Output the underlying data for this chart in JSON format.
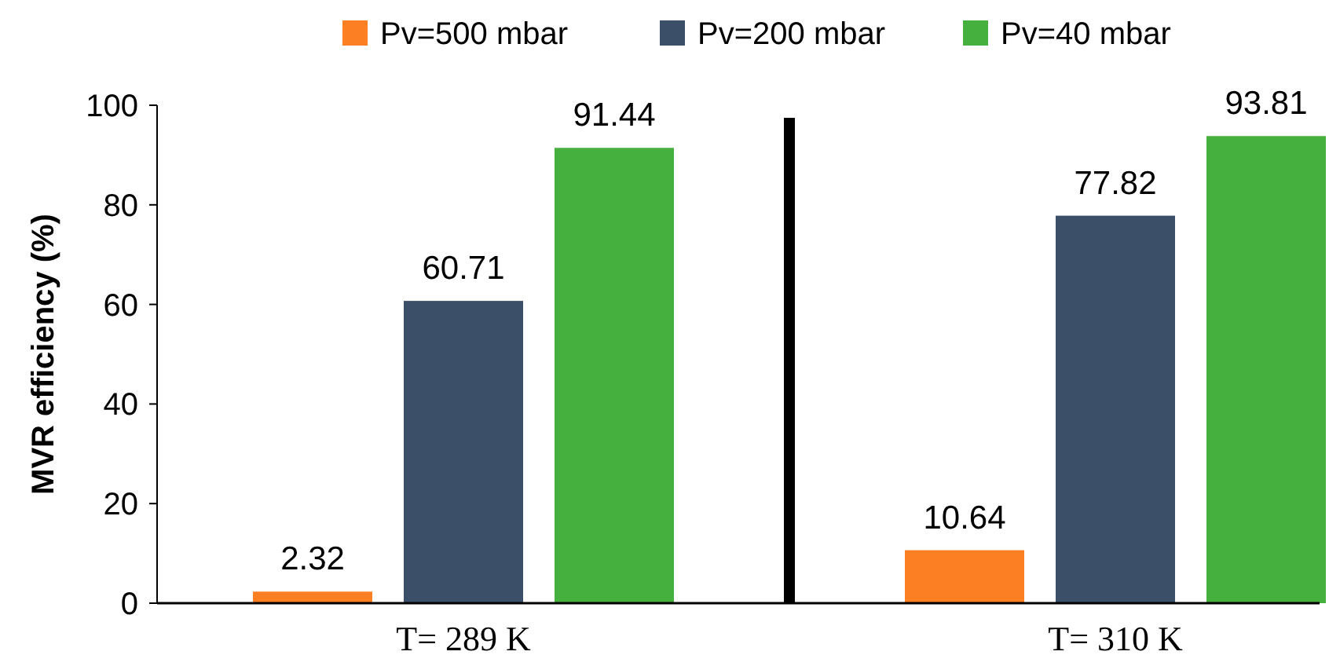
{
  "chart_data": {
    "type": "bar",
    "ylabel": "MVR efficiency (%)",
    "categories": [
      "T= 289 K",
      "T= 310 K"
    ],
    "series": [
      {
        "name": "Pv=500 mbar",
        "color": "#fd7f23",
        "values": [
          2.32,
          10.64
        ]
      },
      {
        "name": "Pv=200 mbar",
        "color": "#3b5068",
        "values": [
          60.71,
          77.82
        ]
      },
      {
        "name": "Pv=40 mbar",
        "color": "#45b03d",
        "values": [
          91.44,
          93.81
        ]
      }
    ],
    "ylim": [
      0,
      100
    ],
    "yticks": [
      0,
      20,
      40,
      60,
      80,
      100
    ],
    "data_labels": true,
    "legend": "top",
    "grid": false
  }
}
